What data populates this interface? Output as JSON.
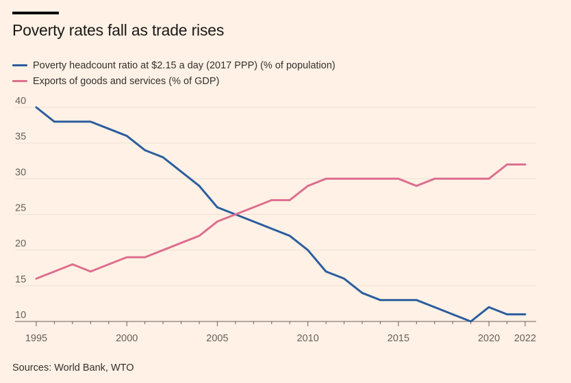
{
  "title": "Poverty rates fall as trade rises",
  "source": "Sources: World Bank, WTO",
  "chart_data": {
    "type": "line",
    "title": "Poverty rates fall as trade rises",
    "xlabel": "",
    "ylabel": "",
    "xlim": [
      1995,
      2022
    ],
    "ylim": [
      10,
      40
    ],
    "x_ticks": [
      1995,
      2000,
      2005,
      2010,
      2015,
      2020,
      2022
    ],
    "y_ticks": [
      10,
      15,
      20,
      25,
      30,
      35,
      40
    ],
    "x": [
      1995,
      1996,
      1997,
      1998,
      1999,
      2000,
      2001,
      2002,
      2003,
      2004,
      2005,
      2006,
      2007,
      2008,
      2009,
      2010,
      2011,
      2012,
      2013,
      2014,
      2015,
      2016,
      2017,
      2018,
      2019,
      2020,
      2021,
      2022
    ],
    "series": [
      {
        "name": "Poverty headcount ratio at $2.15 a day (2017 PPP) (% of population)",
        "color": "#2A5C9E",
        "values": [
          40,
          38,
          38,
          38,
          37,
          36,
          34,
          33,
          31,
          29,
          26,
          25,
          24,
          23,
          22,
          20,
          17,
          16,
          14,
          13,
          13,
          13,
          12,
          11,
          10,
          12,
          11,
          11
        ]
      },
      {
        "name": "Exports of goods and services (% of GDP)",
        "color": "#DC6F8F",
        "values": [
          16,
          17,
          18,
          17,
          18,
          19,
          19,
          20,
          21,
          22,
          24,
          25,
          26,
          27,
          27,
          29,
          30,
          30,
          30,
          30,
          30,
          29,
          30,
          30,
          30,
          30,
          32,
          32
        ]
      }
    ]
  }
}
